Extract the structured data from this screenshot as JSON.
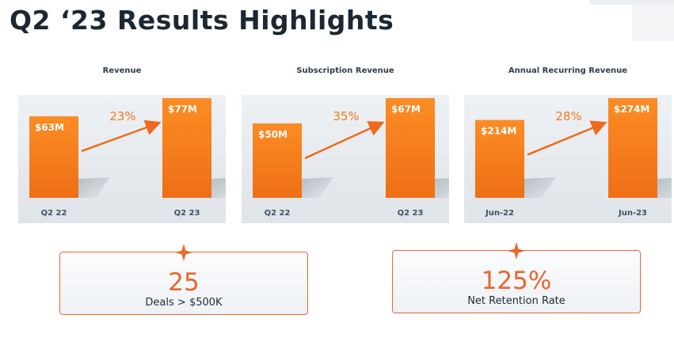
{
  "title": "Q2 ‘23 Results Highlights",
  "colors": {
    "accent": "#f07a1e",
    "text": "#1f2b36"
  },
  "chart_data": [
    {
      "type": "bar",
      "title": "Revenue",
      "categories": [
        "Q2 22",
        "Q2 23"
      ],
      "values": [
        63,
        77
      ],
      "value_labels": [
        "$63M",
        "$77M"
      ],
      "growth_label": "23%",
      "unit": "$M"
    },
    {
      "type": "bar",
      "title": "Subscription Revenue",
      "categories": [
        "Q2 22",
        "Q2 23"
      ],
      "values": [
        50,
        67
      ],
      "value_labels": [
        "$50M",
        "$67M"
      ],
      "growth_label": "35%",
      "unit": "$M"
    },
    {
      "type": "bar",
      "title": "Annual Recurring Revenue",
      "categories": [
        "Jun-22",
        "Jun-23"
      ],
      "values": [
        214,
        274
      ],
      "value_labels": [
        "$214M",
        "$274M"
      ],
      "growth_label": "28%",
      "unit": "$M"
    }
  ],
  "kpis": [
    {
      "value": "25",
      "caption": "Deals > $500K"
    },
    {
      "value": "125%",
      "caption": "Net Retention Rate"
    }
  ]
}
